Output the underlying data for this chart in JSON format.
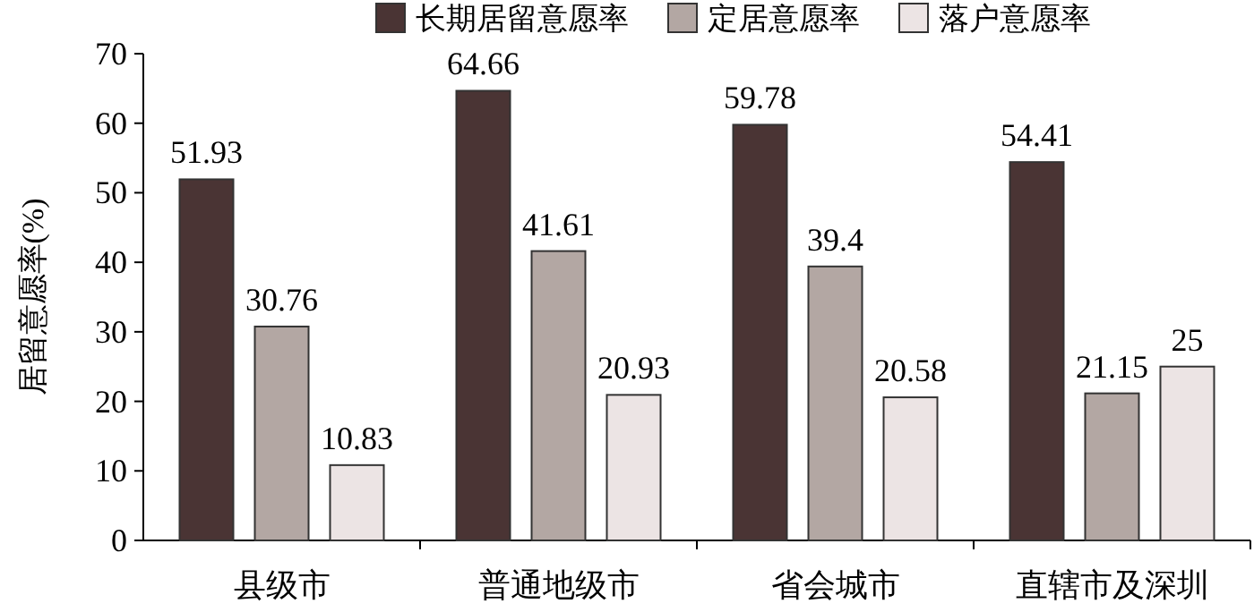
{
  "chart_data": {
    "type": "bar",
    "ylabel": "居留意愿率(%)",
    "categories": [
      "县级市",
      "普通地级市",
      "省会城市",
      "直辖市及深圳"
    ],
    "series": [
      {
        "name": "长期居留意愿率",
        "color": "#4a3434",
        "values": [
          51.93,
          64.66,
          59.78,
          54.41
        ]
      },
      {
        "name": "定居意愿率",
        "color": "#b3a7a3",
        "values": [
          30.76,
          41.61,
          39.4,
          21.15
        ]
      },
      {
        "name": "落户意愿率",
        "color": "#ece4e4",
        "values": [
          10.83,
          20.93,
          20.58,
          25
        ]
      }
    ],
    "ylim": [
      0,
      70
    ],
    "yticks": [
      0,
      10,
      20,
      30,
      40,
      50,
      60,
      70
    ],
    "legend": "top",
    "data_labels": true
  }
}
